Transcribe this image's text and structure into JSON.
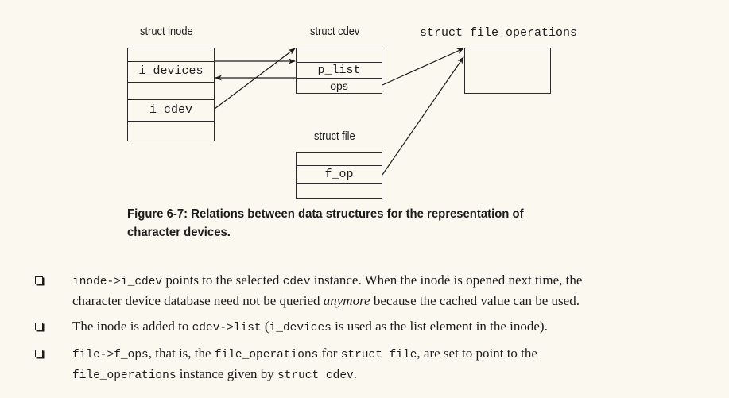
{
  "diagram": {
    "inode": {
      "title": "struct inode",
      "fields": [
        "i_devices",
        "i_cdev"
      ]
    },
    "cdev": {
      "title": "struct cdev",
      "fields": [
        "p_list",
        "ops"
      ]
    },
    "file_operations": {
      "title": "struct file_operations"
    },
    "file": {
      "title": "struct file",
      "fields": [
        "f_op"
      ]
    }
  },
  "caption": {
    "line1": "Figure 6-7: Relations between data structures for the representation of",
    "line2": "character devices."
  },
  "bullets": [
    {
      "parts": [
        {
          "t": "inode->i_cdev",
          "code": true
        },
        {
          "t": " points to the selected "
        },
        {
          "t": "cdev",
          "code": true
        },
        {
          "t": " instance. When the inode is opened next time, the"
        },
        {
          "br": true
        },
        {
          "t": "character device database need not be queried "
        },
        {
          "t": "anymore",
          "em": true
        },
        {
          "t": " because the cached value can be used."
        }
      ]
    },
    {
      "parts": [
        {
          "t": "The inode is added to "
        },
        {
          "t": "cdev->list",
          "code": true
        },
        {
          "t": " ("
        },
        {
          "t": "i_devices",
          "code": true
        },
        {
          "t": " is used as the list element in the inode)."
        }
      ]
    },
    {
      "parts": [
        {
          "t": "file->f_ops",
          "code": true
        },
        {
          "t": ", that is, the "
        },
        {
          "t": "file_operations",
          "code": true
        },
        {
          "t": " for "
        },
        {
          "t": "struct file",
          "code": true
        },
        {
          "t": ", are set to point to the"
        },
        {
          "br": true
        },
        {
          "t": "file_operations",
          "code": true
        },
        {
          "t": " instance given by "
        },
        {
          "t": "struct cdev",
          "code": true
        },
        {
          "t": "."
        }
      ]
    }
  ]
}
